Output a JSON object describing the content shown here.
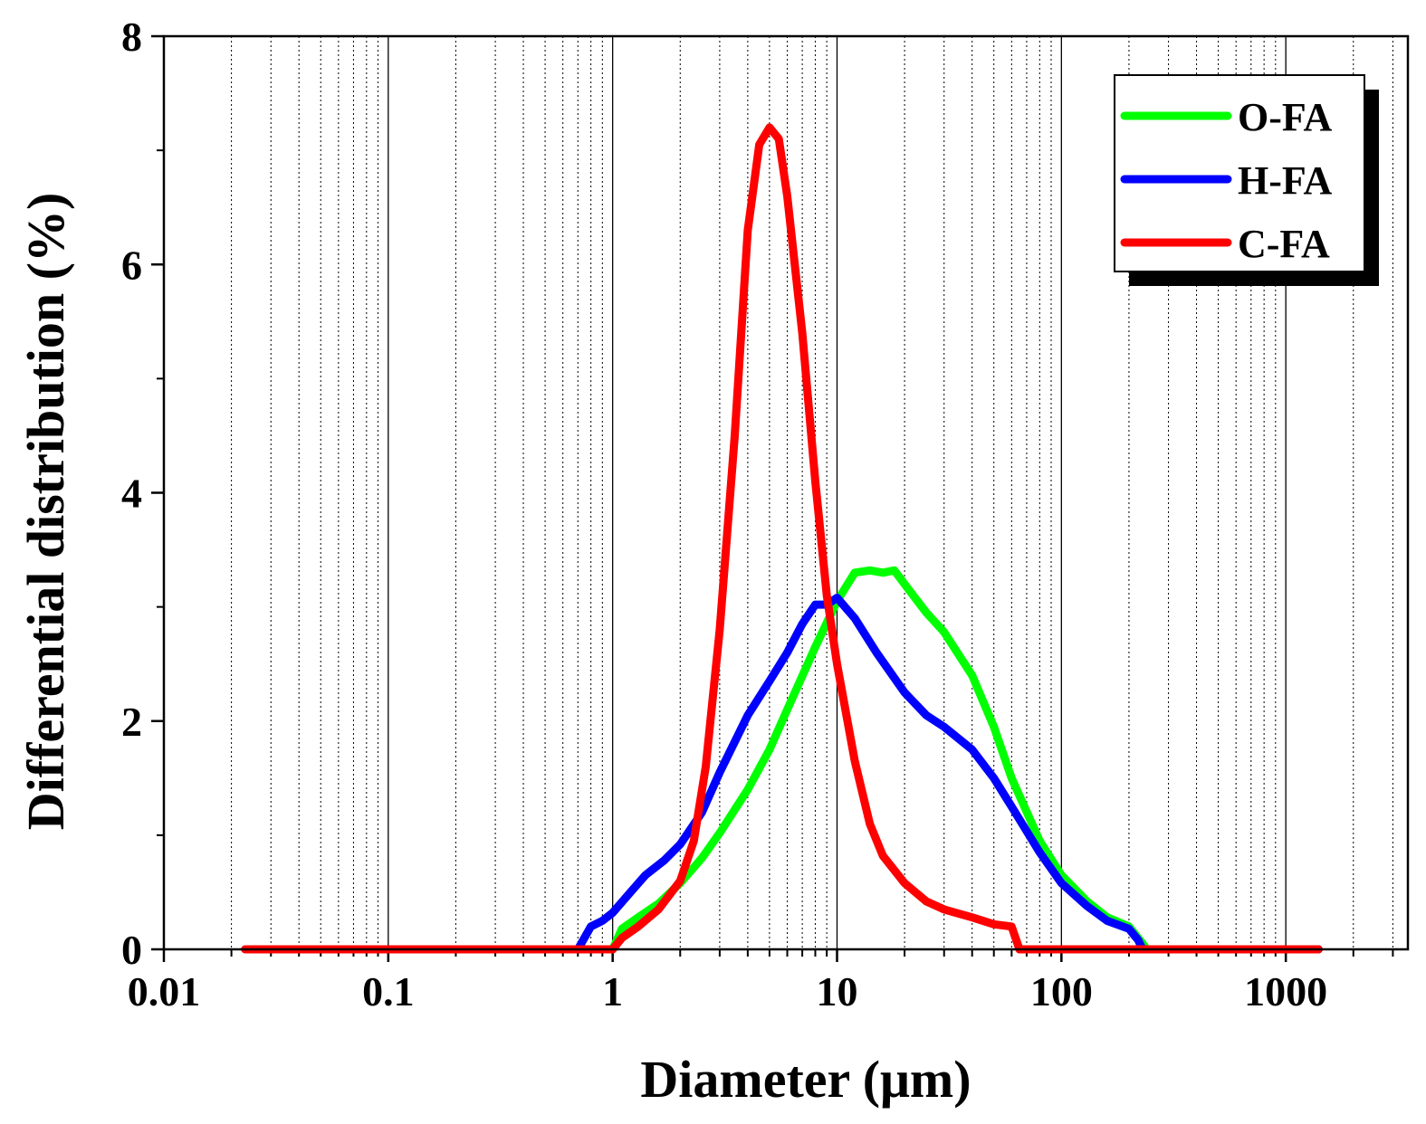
{
  "chart_data": {
    "type": "line",
    "xlabel": "Diameter (μm)",
    "ylabel": "Differential distribution (%)",
    "xscale": "log",
    "xlim": [
      0.01,
      3500
    ],
    "ylim": [
      0,
      8
    ],
    "x_ticks": [
      0.01,
      0.1,
      1,
      10,
      100,
      1000
    ],
    "x_tick_labels": [
      "0.01",
      "0.1",
      "1",
      "10",
      "100",
      "1000"
    ],
    "y_ticks": [
      0,
      2,
      4,
      6,
      8
    ],
    "y_tick_labels": [
      "0",
      "2",
      "4",
      "6",
      "8"
    ],
    "grid": "vertical major solid, minor dotted",
    "legend_position": "top-right",
    "series": [
      {
        "name": "O-FA",
        "color": "#00ff00",
        "points": [
          [
            1.0,
            0.0
          ],
          [
            1.1,
            0.18
          ],
          [
            1.3,
            0.28
          ],
          [
            1.6,
            0.4
          ],
          [
            2.0,
            0.58
          ],
          [
            2.5,
            0.8
          ],
          [
            3.0,
            1.02
          ],
          [
            4.0,
            1.4
          ],
          [
            5.0,
            1.75
          ],
          [
            6.0,
            2.1
          ],
          [
            8.0,
            2.65
          ],
          [
            10.0,
            3.05
          ],
          [
            12.0,
            3.3
          ],
          [
            14.0,
            3.32
          ],
          [
            16.0,
            3.3
          ],
          [
            18.0,
            3.32
          ],
          [
            20.0,
            3.2
          ],
          [
            25.0,
            2.95
          ],
          [
            30.0,
            2.78
          ],
          [
            40.0,
            2.4
          ],
          [
            50.0,
            1.95
          ],
          [
            60.0,
            1.5
          ],
          [
            80.0,
            0.95
          ],
          [
            100.0,
            0.65
          ],
          [
            130.0,
            0.42
          ],
          [
            160.0,
            0.28
          ],
          [
            200.0,
            0.2
          ],
          [
            230.0,
            0.05
          ],
          [
            240.0,
            0.0
          ],
          [
            1400.0,
            0.0
          ]
        ]
      },
      {
        "name": "H-FA",
        "color": "#0000ff",
        "points": [
          [
            0.7,
            0.0
          ],
          [
            0.8,
            0.2
          ],
          [
            0.9,
            0.25
          ],
          [
            1.0,
            0.32
          ],
          [
            1.2,
            0.5
          ],
          [
            1.4,
            0.65
          ],
          [
            1.7,
            0.78
          ],
          [
            2.0,
            0.92
          ],
          [
            2.5,
            1.2
          ],
          [
            3.0,
            1.55
          ],
          [
            4.0,
            2.05
          ],
          [
            5.0,
            2.35
          ],
          [
            6.0,
            2.6
          ],
          [
            7.0,
            2.85
          ],
          [
            8.0,
            3.02
          ],
          [
            9.0,
            3.02
          ],
          [
            10.0,
            3.08
          ],
          [
            12.0,
            2.9
          ],
          [
            15.0,
            2.6
          ],
          [
            20.0,
            2.25
          ],
          [
            25.0,
            2.05
          ],
          [
            30.0,
            1.95
          ],
          [
            40.0,
            1.75
          ],
          [
            50.0,
            1.5
          ],
          [
            60.0,
            1.25
          ],
          [
            80.0,
            0.85
          ],
          [
            100.0,
            0.58
          ],
          [
            130.0,
            0.38
          ],
          [
            160.0,
            0.25
          ],
          [
            200.0,
            0.18
          ],
          [
            220.0,
            0.08
          ],
          [
            230.0,
            0.0
          ],
          [
            1400.0,
            0.0
          ]
        ]
      },
      {
        "name": "C-FA",
        "color": "#ff0000",
        "points": [
          [
            0.023,
            0.0
          ],
          [
            1.0,
            0.0
          ],
          [
            1.1,
            0.1
          ],
          [
            1.3,
            0.2
          ],
          [
            1.6,
            0.35
          ],
          [
            2.0,
            0.6
          ],
          [
            2.3,
            0.95
          ],
          [
            2.6,
            1.6
          ],
          [
            3.0,
            2.8
          ],
          [
            3.5,
            4.5
          ],
          [
            4.0,
            6.3
          ],
          [
            4.5,
            7.05
          ],
          [
            5.0,
            7.2
          ],
          [
            5.5,
            7.1
          ],
          [
            6.0,
            6.6
          ],
          [
            7.0,
            5.4
          ],
          [
            8.0,
            4.1
          ],
          [
            9.0,
            3.1
          ],
          [
            10.0,
            2.5
          ],
          [
            12.0,
            1.65
          ],
          [
            14.0,
            1.1
          ],
          [
            16.0,
            0.82
          ],
          [
            20.0,
            0.58
          ],
          [
            25.0,
            0.42
          ],
          [
            30.0,
            0.35
          ],
          [
            40.0,
            0.28
          ],
          [
            50.0,
            0.22
          ],
          [
            60.0,
            0.2
          ],
          [
            65.0,
            0.0
          ],
          [
            1400.0,
            0.0
          ]
        ]
      }
    ]
  }
}
